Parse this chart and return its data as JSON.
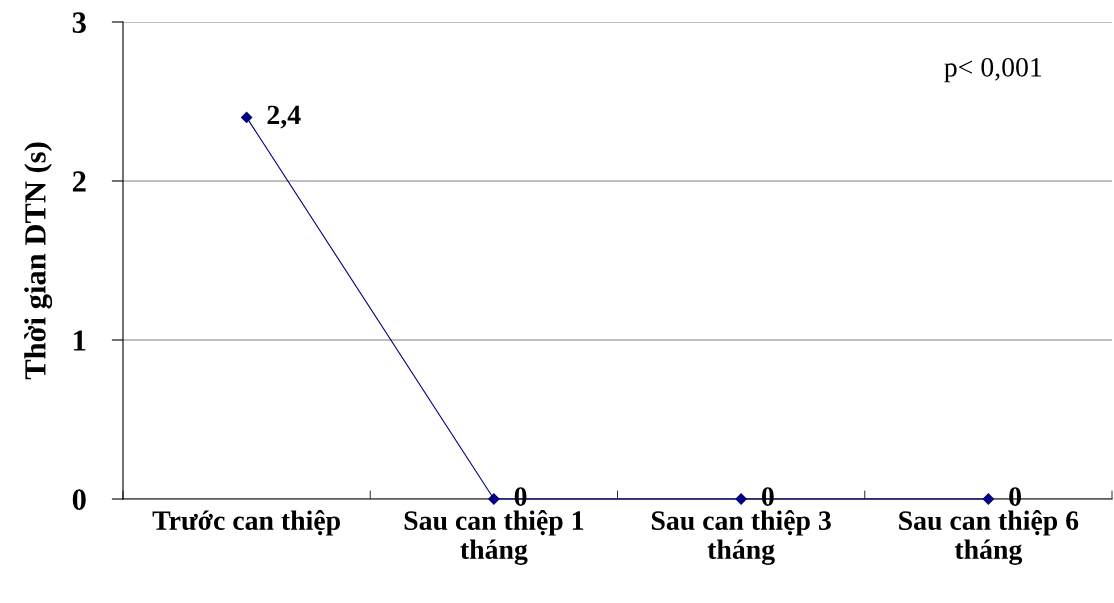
{
  "chart_data": {
    "type": "line",
    "ylabel": "Thời gian DTN (s)",
    "categories": [
      "Trước can thiệp",
      "Sau can thiệp 1\ntháng",
      "Sau can thiệp 3\ntháng",
      "Sau can thiệp 6\ntháng"
    ],
    "series": [
      {
        "color": "#000080",
        "values": [
          2.4,
          0,
          0,
          0
        ],
        "value_labels": [
          "2,4",
          "0",
          "0",
          "0"
        ]
      }
    ],
    "ylim": [
      0,
      3
    ],
    "yticks": [
      0,
      1,
      2,
      3
    ],
    "grid": "y",
    "marker": "diamond",
    "line_style": "solid",
    "annotations": [
      "p< 0,001"
    ]
  }
}
